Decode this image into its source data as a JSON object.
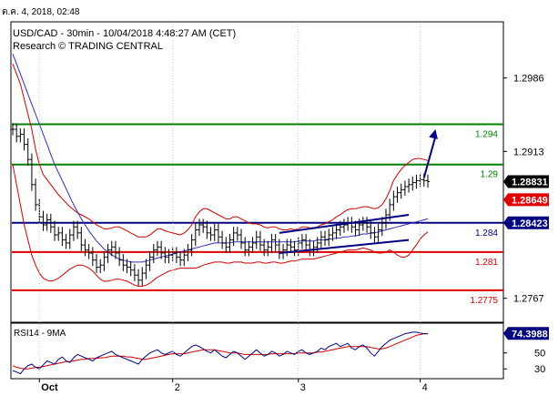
{
  "timestamp": "ต.ค. 4, 2018, 02:48",
  "header": {
    "line1": "USD/CAD - 30min - 10/04/2018 4:48:27 AM (CET)",
    "line2": "Research © TRADING CENTRAL"
  },
  "colors": {
    "price": "#000000",
    "green_level": "#008000",
    "blue_level": "#000080",
    "red_level": "#e00000",
    "band_red": "#d00000",
    "ma_blue": "#3030c0",
    "arrow": "#000080",
    "badge_current": "#000000",
    "badge_red": "#e00000",
    "badge_blue": "#000080",
    "badge_rsi": "#000080"
  },
  "chart_data": [
    {
      "type": "line",
      "title": "USD/CAD - 30min - 10/04/2018 4:48:27 AM (CET)",
      "ylim": [
        1.2745,
        1.304
      ],
      "y_ticks": [
        "1.2986",
        "1.2913",
        "1.2767"
      ],
      "y_tick_values": [
        1.2986,
        1.2913,
        1.2767
      ],
      "x_ticks": [
        "Oct",
        "2",
        "3",
        "4"
      ],
      "x_tick_index": [
        7,
        42,
        75,
        107
      ],
      "bar_count": 110,
      "levels": [
        {
          "label": "1.294",
          "value": 1.294,
          "color": "green"
        },
        {
          "label": "1.29",
          "value": 1.29,
          "color": "green"
        },
        {
          "label": "1.284",
          "value": 1.2842,
          "color": "blue"
        },
        {
          "label": "1.281",
          "value": 1.2813,
          "color": "red"
        },
        {
          "label": "1.2775",
          "value": 1.2775,
          "color": "red"
        }
      ],
      "price_badges": [
        {
          "label": "1.28831",
          "value": 1.2883,
          "color": "black"
        },
        {
          "label": "1.28649",
          "value": 1.2865,
          "color": "red"
        },
        {
          "label": "1.28423",
          "value": 1.2842,
          "color": "blue"
        }
      ],
      "price_series": [
        1.2935,
        1.2928,
        1.293,
        1.292,
        1.2905,
        1.288,
        1.286,
        1.2848,
        1.284,
        1.2845,
        1.2838,
        1.283,
        1.2832,
        1.2825,
        1.2822,
        1.283,
        1.2838,
        1.2832,
        1.282,
        1.2815,
        1.2812,
        1.2805,
        1.2798,
        1.28,
        1.2808,
        1.2815,
        1.2818,
        1.2812,
        1.2805,
        1.28,
        1.2798,
        1.2795,
        1.279,
        1.2785,
        1.2792,
        1.28,
        1.2808,
        1.2815,
        1.2818,
        1.2812,
        1.2808,
        1.281,
        1.2812,
        1.2808,
        1.2805,
        1.281,
        1.2815,
        1.2825,
        1.2835,
        1.284,
        1.2838,
        1.2832,
        1.283,
        1.2835,
        1.2828,
        1.2822,
        1.2818,
        1.2825,
        1.2832,
        1.283,
        1.2822,
        1.2815,
        1.2818,
        1.2822,
        1.2828,
        1.282,
        1.2815,
        1.2818,
        1.2825,
        1.282,
        1.2812,
        1.2815,
        1.282,
        1.2818,
        1.2815,
        1.2822,
        1.2825,
        1.282,
        1.2815,
        1.2818,
        1.2822,
        1.2828,
        1.2825,
        1.283,
        1.2832,
        1.2835,
        1.2838,
        1.284,
        1.2842,
        1.2838,
        1.2835,
        1.284,
        1.2842,
        1.2838,
        1.2832,
        1.2828,
        1.2835,
        1.2842,
        1.285,
        1.286,
        1.2868,
        1.2872,
        1.2875,
        1.2878,
        1.288,
        1.2882,
        1.2884,
        1.2885,
        1.2884,
        1.2883
      ],
      "ma_series": [
        1.301,
        1.3,
        1.299,
        1.298,
        1.297,
        1.296,
        1.295,
        1.294,
        1.293,
        1.292,
        1.291,
        1.29,
        1.2892,
        1.2884,
        1.2876,
        1.2868,
        1.286,
        1.2853,
        1.2846,
        1.284,
        1.2834,
        1.2829,
        1.2824,
        1.282,
        1.2816,
        1.2813,
        1.281,
        1.2808,
        1.2806,
        1.2805,
        1.2804,
        1.2803,
        1.2803,
        1.2803,
        1.2803,
        1.2804,
        1.2805,
        1.2806,
        1.2807,
        1.2808,
        1.2809,
        1.281,
        1.2811,
        1.2812,
        1.2813,
        1.2814,
        1.2815,
        1.2816,
        1.2817,
        1.2818,
        1.2819,
        1.282,
        1.2821,
        1.2822,
        1.2822,
        1.2822,
        1.2822,
        1.2822,
        1.2823,
        1.2823,
        1.2823,
        1.2823,
        1.2823,
        1.2823,
        1.2823,
        1.2823,
        1.2823,
        1.2823,
        1.2823,
        1.2823,
        1.2823,
        1.2823,
        1.2823,
        1.2823,
        1.2823,
        1.2824,
        1.2824,
        1.2824,
        1.2824,
        1.2824,
        1.2825,
        1.2825,
        1.2825,
        1.2826,
        1.2826,
        1.2827,
        1.2827,
        1.2828,
        1.2828,
        1.2829,
        1.2829,
        1.283,
        1.2831,
        1.2831,
        1.2832,
        1.2832,
        1.2833,
        1.2834,
        1.2835,
        1.2836,
        1.2837,
        1.2838,
        1.2839,
        1.284,
        1.2841,
        1.2842,
        1.2843,
        1.2844,
        1.2845,
        1.2846
      ],
      "band_upper": [
        1.3,
        1.299,
        1.298,
        1.2965,
        1.295,
        1.2935,
        1.2915,
        1.29,
        1.289,
        1.2885,
        1.288,
        1.2875,
        1.287,
        1.2866,
        1.2862,
        1.2858,
        1.2855,
        1.2852,
        1.285,
        1.2848,
        1.2846,
        1.2843,
        1.284,
        1.2838,
        1.2836,
        1.2836,
        1.2837,
        1.2838,
        1.2838,
        1.2836,
        1.2834,
        1.2832,
        1.283,
        1.2828,
        1.2828,
        1.2828,
        1.283,
        1.2833,
        1.2836,
        1.2836,
        1.2834,
        1.2833,
        1.2832,
        1.2831,
        1.283,
        1.2832,
        1.2835,
        1.284,
        1.2848,
        1.2853,
        1.2856,
        1.2856,
        1.2854,
        1.2852,
        1.285,
        1.2848,
        1.2846,
        1.2846,
        1.2848,
        1.2848,
        1.2846,
        1.2844,
        1.2842,
        1.2841,
        1.2841,
        1.284,
        1.2838,
        1.2837,
        1.2838,
        1.2838,
        1.2836,
        1.2835,
        1.2835,
        1.2836,
        1.2835,
        1.2836,
        1.2838,
        1.2838,
        1.2837,
        1.2837,
        1.2838,
        1.284,
        1.2841,
        1.2843,
        1.2845,
        1.2848,
        1.285,
        1.2853,
        1.2855,
        1.2856,
        1.2856,
        1.2857,
        1.2858,
        1.2858,
        1.2857,
        1.2856,
        1.2857,
        1.286,
        1.2866,
        1.2874,
        1.2884,
        1.289,
        1.2895,
        1.2899,
        1.2902,
        1.2905,
        1.2906,
        1.2906,
        1.2905,
        1.2904
      ],
      "band_lower": [
        1.29,
        1.288,
        1.286,
        1.284,
        1.2825,
        1.281,
        1.28,
        1.2792,
        1.2787,
        1.2785,
        1.2784,
        1.2785,
        1.2787,
        1.279,
        1.2793,
        1.2796,
        1.2798,
        1.28,
        1.28,
        1.2799,
        1.2797,
        1.2794,
        1.279,
        1.2786,
        1.2784,
        1.2784,
        1.2785,
        1.2786,
        1.2786,
        1.2785,
        1.2784,
        1.2782,
        1.278,
        1.2779,
        1.2779,
        1.278,
        1.2782,
        1.2785,
        1.2788,
        1.279,
        1.2792,
        1.2794,
        1.2795,
        1.2796,
        1.2797,
        1.2797,
        1.2797,
        1.2797,
        1.2797,
        1.2798,
        1.28,
        1.2801,
        1.2802,
        1.2803,
        1.2803,
        1.2803,
        1.2802,
        1.2802,
        1.2803,
        1.2803,
        1.2803,
        1.2802,
        1.2802,
        1.2802,
        1.2803,
        1.2803,
        1.2802,
        1.2802,
        1.2803,
        1.2803,
        1.2802,
        1.2802,
        1.2803,
        1.2804,
        1.2804,
        1.2805,
        1.2806,
        1.2806,
        1.2806,
        1.2806,
        1.2807,
        1.2808,
        1.2809,
        1.281,
        1.2811,
        1.2812,
        1.2813,
        1.2814,
        1.2815,
        1.2815,
        1.2815,
        1.2816,
        1.2817,
        1.2816,
        1.2815,
        1.2813,
        1.2812,
        1.2812,
        1.2813,
        1.2815,
        1.2813,
        1.281,
        1.2808,
        1.2808,
        1.281,
        1.2815,
        1.282,
        1.2826,
        1.283,
        1.2833
      ],
      "trendlines": [
        {
          "from": [
            70,
            1.2832
          ],
          "to": [
            104,
            1.285
          ]
        },
        {
          "from": [
            70,
            1.2812
          ],
          "to": [
            104,
            1.2825
          ]
        }
      ],
      "arrow": {
        "from": [
          108,
          1.2887
        ],
        "to": [
          111,
          1.2935
        ]
      }
    },
    {
      "type": "line",
      "title": "RSI14 - 9MA",
      "ylim": [
        20,
        85
      ],
      "y_ticks": [
        "50",
        "30"
      ],
      "y_tick_values": [
        50,
        30
      ],
      "badge": "74.3988",
      "badge_value": 74.3988,
      "rsi_series": [
        28,
        26,
        24,
        30,
        34,
        36,
        32,
        30,
        35,
        40,
        38,
        36,
        42,
        45,
        40,
        38,
        44,
        48,
        46,
        44,
        42,
        40,
        44,
        46,
        48,
        50,
        52,
        48,
        46,
        44,
        42,
        40,
        38,
        36,
        42,
        46,
        50,
        52,
        54,
        50,
        48,
        50,
        52,
        48,
        46,
        50,
        54,
        58,
        60,
        58,
        55,
        52,
        50,
        54,
        50,
        46,
        44,
        48,
        52,
        50,
        46,
        42,
        46,
        50,
        54,
        50,
        46,
        48,
        52,
        50,
        46,
        48,
        52,
        50,
        48,
        52,
        54,
        50,
        48,
        50,
        52,
        56,
        54,
        58,
        60,
        62,
        58,
        60,
        62,
        56,
        54,
        58,
        60,
        56,
        50,
        46,
        52,
        58,
        62,
        66,
        68,
        70,
        72,
        74,
        75,
        76,
        76,
        75,
        74,
        74
      ],
      "ma_series": [
        34,
        32,
        31,
        30,
        30,
        31,
        32,
        32,
        33,
        34,
        35,
        36,
        37,
        38,
        39,
        39,
        40,
        41,
        42,
        42,
        43,
        43,
        43,
        44,
        44,
        45,
        46,
        46,
        46,
        46,
        45,
        45,
        44,
        43,
        42,
        42,
        43,
        44,
        45,
        46,
        47,
        48,
        49,
        49,
        49,
        49,
        50,
        51,
        52,
        53,
        54,
        54,
        54,
        54,
        53,
        52,
        51,
        50,
        50,
        50,
        49,
        48,
        48,
        48,
        48,
        48,
        48,
        48,
        49,
        49,
        49,
        49,
        49,
        49,
        49,
        50,
        50,
        50,
        50,
        50,
        51,
        51,
        52,
        53,
        54,
        55,
        56,
        57,
        58,
        58,
        58,
        58,
        58,
        58,
        57,
        56,
        55,
        55,
        56,
        58,
        60,
        62,
        64,
        66,
        68,
        70,
        72,
        73,
        74,
        74
      ]
    }
  ]
}
